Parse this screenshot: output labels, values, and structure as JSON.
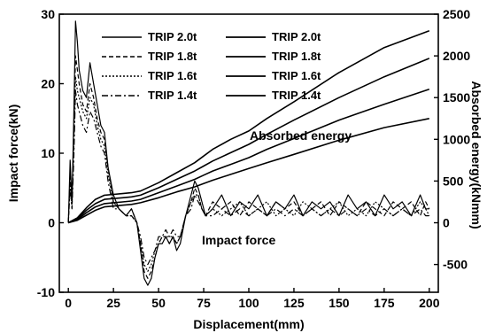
{
  "chart_data": {
    "type": "line",
    "title": "",
    "xlabel": "Displacement(mm)",
    "ylabel_left": "Impact force(kN)",
    "ylabel_right": "Absorbed energy(kNmm)",
    "xlim": [
      -5,
      205
    ],
    "ylim_left": [
      -10,
      30
    ],
    "ylim_right": [
      -833,
      2500
    ],
    "x_ticks": [
      0,
      25,
      50,
      75,
      100,
      125,
      150,
      175,
      200
    ],
    "y_left_ticks": [
      -10,
      0,
      10,
      20,
      30
    ],
    "y_right_ticks": [
      -500,
      0,
      500,
      1000,
      1500,
      2000,
      2500
    ],
    "grid": false,
    "legend_placement": "top-left",
    "annotations": {
      "energy": "Absorbed energy",
      "force": "Impact force"
    },
    "legend": {
      "force": [
        "TRIP 2.0t",
        "TRIP 1.8t",
        "TRIP 1.6t",
        "TRIP 1.4t"
      ],
      "energy": [
        "TRIP 2.0t",
        "TRIP 1.8t",
        "TRIP 1.6t",
        "TRIP 1.4t"
      ]
    },
    "force_series": [
      {
        "name": "TRIP 2.0t",
        "axis": "left",
        "dash": "solid",
        "x": [
          0,
          1,
          2,
          3,
          4,
          5,
          6,
          8,
          10,
          12,
          14,
          16,
          18,
          20,
          22,
          25,
          28,
          32,
          35,
          38,
          40,
          42,
          44,
          46,
          48,
          50,
          52,
          54,
          56,
          58,
          60,
          62,
          65,
          68,
          70,
          72,
          74,
          76,
          80,
          85,
          90,
          95,
          100,
          105,
          110,
          115,
          120,
          125,
          130,
          135,
          140,
          145,
          150,
          155,
          160,
          165,
          170,
          175,
          180,
          185,
          190,
          195,
          198,
          200
        ],
        "y": [
          0,
          9,
          3,
          15,
          29,
          26,
          22,
          19,
          18,
          23,
          20,
          17,
          14,
          13,
          8,
          4,
          2,
          1,
          2,
          0,
          -4,
          -8,
          -9,
          -8,
          -5,
          -3,
          -3,
          -2,
          -3,
          -2,
          -4,
          -3,
          1,
          4,
          6,
          5,
          3,
          1,
          2,
          4,
          1,
          3,
          2,
          4,
          1,
          3,
          2,
          4,
          1,
          3,
          2,
          3,
          1,
          4,
          2,
          3,
          1,
          4,
          2,
          3,
          1,
          4,
          2,
          2
        ]
      },
      {
        "name": "TRIP 1.8t",
        "axis": "left",
        "dash": "dashed",
        "x": [
          0,
          1,
          2,
          3,
          4,
          5,
          6,
          8,
          10,
          12,
          14,
          16,
          18,
          20,
          22,
          25,
          28,
          32,
          35,
          38,
          40,
          42,
          44,
          46,
          48,
          50,
          52,
          54,
          56,
          58,
          60,
          62,
          65,
          68,
          70,
          72,
          74,
          76,
          80,
          85,
          90,
          95,
          100,
          105,
          110,
          115,
          120,
          125,
          130,
          135,
          140,
          145,
          150,
          155,
          160,
          165,
          170,
          175,
          180,
          185,
          190,
          195,
          198,
          200
        ],
        "y": [
          0,
          7,
          3,
          13,
          24,
          22,
          20,
          17,
          16,
          20,
          18,
          15,
          13,
          12,
          8,
          3,
          2,
          1,
          2,
          0,
          -3,
          -7,
          -8,
          -7,
          -5,
          -3,
          -2,
          -2,
          -3,
          -2,
          -3,
          -2,
          1,
          3,
          5,
          4,
          2,
          1,
          3,
          2,
          3,
          1,
          3,
          2,
          1,
          3,
          2,
          3,
          1,
          2,
          3,
          1,
          3,
          2,
          1,
          3,
          2,
          1,
          3,
          2,
          3,
          1,
          3,
          2
        ]
      },
      {
        "name": "TRIP 1.6t",
        "axis": "left",
        "dash": "dotted",
        "x": [
          0,
          1,
          2,
          3,
          4,
          5,
          6,
          8,
          10,
          12,
          14,
          16,
          18,
          20,
          22,
          25,
          28,
          32,
          35,
          38,
          40,
          42,
          44,
          46,
          48,
          50,
          52,
          54,
          56,
          58,
          60,
          62,
          65,
          68,
          70,
          72,
          74,
          76,
          80,
          85,
          90,
          95,
          100,
          105,
          110,
          115,
          120,
          125,
          130,
          135,
          140,
          145,
          150,
          155,
          160,
          165,
          170,
          175,
          180,
          185,
          190,
          195,
          198,
          200
        ],
        "y": [
          0,
          6,
          2,
          11,
          21,
          19,
          18,
          16,
          15,
          18,
          17,
          14,
          12,
          11,
          7,
          3,
          2,
          1,
          1,
          0,
          -3,
          -6,
          -7,
          -6,
          -4,
          -3,
          -2,
          -2,
          -2,
          -2,
          -3,
          -2,
          1,
          3,
          4,
          4,
          2,
          1,
          2,
          1,
          2,
          3,
          1,
          2,
          3,
          1,
          2,
          1,
          3,
          2,
          1,
          2,
          3,
          1,
          2,
          1,
          3,
          2,
          1,
          2,
          1,
          3,
          2,
          1
        ]
      },
      {
        "name": "TRIP 1.4t",
        "axis": "left",
        "dash": "dash-dot",
        "x": [
          0,
          1,
          2,
          3,
          4,
          5,
          6,
          8,
          10,
          12,
          14,
          16,
          18,
          20,
          22,
          25,
          28,
          32,
          35,
          38,
          40,
          42,
          44,
          46,
          48,
          50,
          52,
          54,
          56,
          58,
          60,
          62,
          65,
          68,
          70,
          72,
          74,
          76,
          80,
          85,
          90,
          95,
          100,
          105,
          110,
          115,
          120,
          125,
          130,
          135,
          140,
          145,
          150,
          155,
          160,
          165,
          170,
          175,
          180,
          185,
          190,
          195,
          198,
          200
        ],
        "y": [
          0,
          5,
          2,
          9,
          19,
          17,
          16,
          14,
          13,
          16,
          15,
          13,
          11,
          10,
          6,
          2,
          2,
          1,
          1,
          0,
          -2,
          -5,
          -6,
          -5,
          -4,
          -2,
          -2,
          -1,
          -2,
          -1,
          -2,
          -2,
          1,
          2,
          4,
          3,
          2,
          1,
          1,
          2,
          1,
          2,
          1,
          2,
          1,
          2,
          1,
          2,
          1,
          2,
          1,
          2,
          1,
          2,
          1,
          2,
          1,
          2,
          1,
          2,
          1,
          2,
          1,
          1
        ]
      }
    ],
    "energy_series": [
      {
        "name": "TRIP 2.0t",
        "axis": "right",
        "x": [
          0,
          5,
          10,
          15,
          20,
          25,
          30,
          35,
          40,
          50,
          60,
          70,
          75,
          80,
          90,
          100,
          110,
          125,
          150,
          175,
          200
        ],
        "y": [
          0,
          60,
          180,
          280,
          330,
          340,
          350,
          360,
          380,
          480,
          600,
          720,
          800,
          880,
          1000,
          1100,
          1250,
          1450,
          1800,
          2100,
          2300
        ]
      },
      {
        "name": "TRIP 1.8t",
        "axis": "right",
        "x": [
          0,
          5,
          10,
          15,
          20,
          25,
          30,
          35,
          40,
          50,
          60,
          70,
          75,
          80,
          90,
          100,
          110,
          125,
          150,
          175,
          200
        ],
        "y": [
          0,
          50,
          150,
          230,
          280,
          290,
          300,
          310,
          330,
          420,
          520,
          620,
          680,
          740,
          840,
          940,
          1060,
          1230,
          1500,
          1750,
          1970
        ]
      },
      {
        "name": "TRIP 1.6t",
        "axis": "right",
        "x": [
          0,
          5,
          10,
          15,
          20,
          25,
          30,
          35,
          40,
          50,
          60,
          70,
          75,
          80,
          90,
          100,
          110,
          125,
          150,
          175,
          200
        ],
        "y": [
          0,
          40,
          120,
          190,
          230,
          240,
          250,
          260,
          280,
          360,
          440,
          520,
          570,
          620,
          700,
          780,
          880,
          1010,
          1230,
          1420,
          1600
        ]
      },
      {
        "name": "TRIP 1.4t",
        "axis": "right",
        "x": [
          0,
          5,
          10,
          15,
          20,
          25,
          30,
          35,
          40,
          50,
          60,
          70,
          75,
          80,
          90,
          100,
          110,
          125,
          150,
          175,
          200
        ],
        "y": [
          0,
          30,
          90,
          150,
          190,
          200,
          210,
          220,
          240,
          300,
          370,
          430,
          470,
          510,
          580,
          650,
          720,
          820,
          990,
          1140,
          1250
        ]
      }
    ]
  }
}
